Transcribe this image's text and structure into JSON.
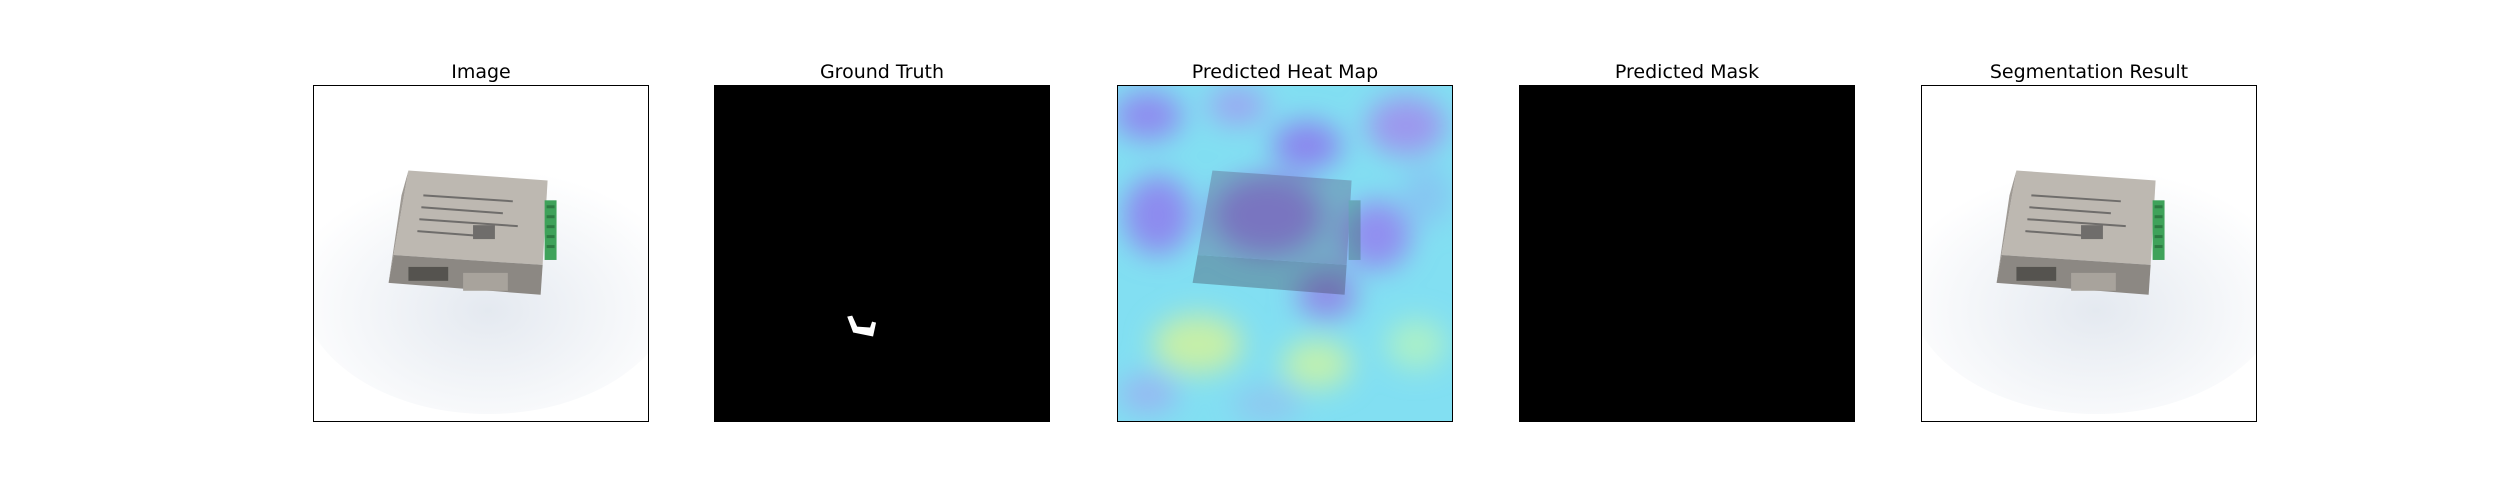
{
  "figure": {
    "panels": [
      {
        "title": "Image",
        "kind": "image"
      },
      {
        "title": "Ground Truth",
        "kind": "ground-truth"
      },
      {
        "title": "Predicted Heat Map",
        "kind": "heatmap"
      },
      {
        "title": "Predicted Mask",
        "kind": "mask"
      },
      {
        "title": "Segmentation Result",
        "kind": "segmentation"
      }
    ]
  },
  "colors": {
    "background": "#ffffff",
    "frame": "#000000",
    "mask_background": "#000000",
    "mask_foreground": "#ffffff",
    "heatmap_base": "#7fe3f0",
    "heatmap_low": "#8a8cf0",
    "heatmap_high": "#c8f0a0",
    "device_metal": "#b9b4ad",
    "device_dark": "#6f6d6b",
    "connector_green": "#3fa25a"
  }
}
